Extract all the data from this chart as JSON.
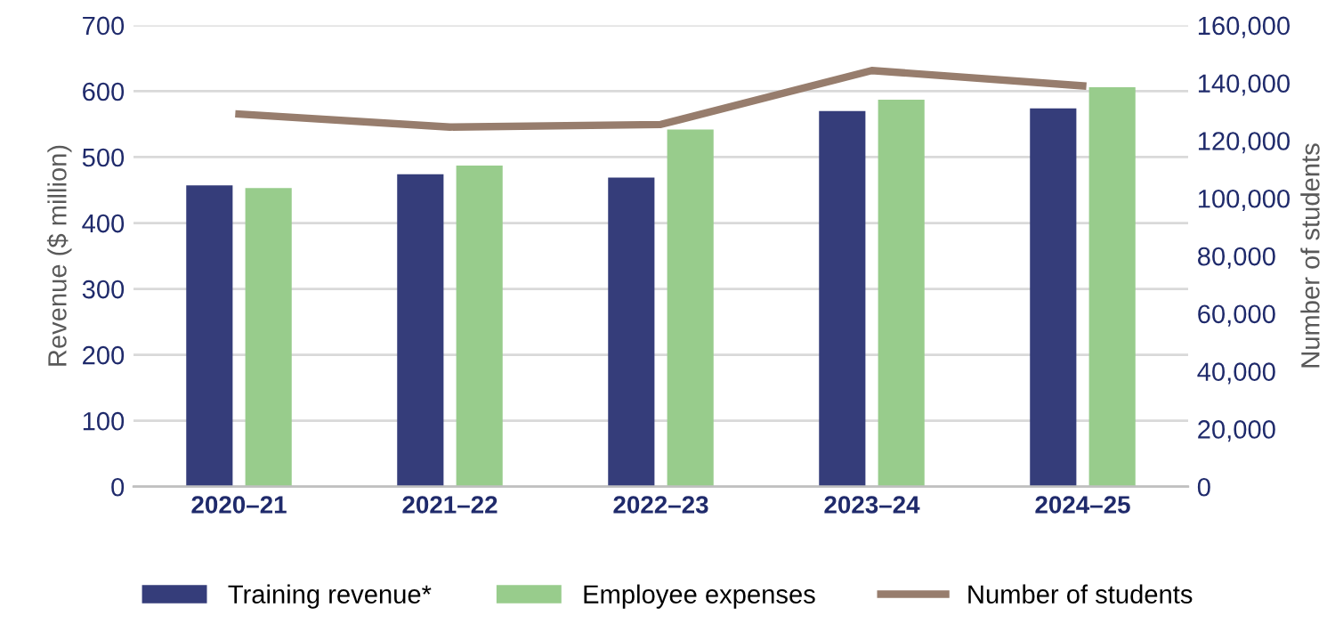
{
  "chart_data": {
    "type": "bar",
    "categories": [
      "2020–21",
      "2021–22",
      "2022–23",
      "2023–24",
      "2024–25"
    ],
    "series": [
      {
        "name": "Training revenue*",
        "color": "#353d7a",
        "values": [
          457,
          474,
          469,
          570,
          574
        ]
      },
      {
        "name": "Employee expenses",
        "color": "#98cc8c",
        "values": [
          453,
          487,
          542,
          587,
          606
        ]
      },
      {
        "name": "Number of students",
        "type": "line",
        "axis": "y2",
        "color": "#977d6d",
        "values": [
          129200,
          124700,
          125600,
          144300,
          139000
        ]
      }
    ],
    "ylabel": "Revenue ($ million)",
    "y2label": "Number of students",
    "ylim": [
      0,
      700
    ],
    "yticks": [
      0,
      100,
      200,
      300,
      400,
      500,
      600,
      700
    ],
    "y2lim": [
      0,
      160000
    ],
    "y2ticks": [
      {
        "value": 0,
        "label": "0"
      },
      {
        "value": 20000,
        "label": "20,000"
      },
      {
        "value": 40000,
        "label": "40,000"
      },
      {
        "value": 60000,
        "label": "60,000"
      },
      {
        "value": 80000,
        "label": "80,000"
      },
      {
        "value": 100000,
        "label": "100,000"
      },
      {
        "value": 120000,
        "label": "120,000"
      },
      {
        "value": 140000,
        "label": "140,000"
      },
      {
        "value": 160000,
        "label": "160,000"
      }
    ],
    "grid": "y",
    "legend": "bottom"
  }
}
